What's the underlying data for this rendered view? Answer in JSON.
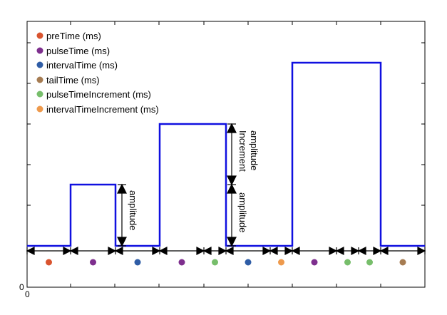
{
  "legend": [
    {
      "label": "preTime (ms)",
      "color": "#D9542F"
    },
    {
      "label": "pulseTime (ms)",
      "color": "#7E2F8E"
    },
    {
      "label": "intervalTime (ms)",
      "color": "#2F5DA6"
    },
    {
      "label": "tailTime (ms)",
      "color": "#A67C52"
    },
    {
      "label": "pulseTimeIncrement (ms)",
      "color": "#77BE6B"
    },
    {
      "label": "intervalTimeIncrement (ms)",
      "color": "#EE9A4D"
    }
  ],
  "axis": {
    "x_origin_label": "0",
    "y_origin_label": "0"
  },
  "annotations": {
    "amplitude": "amplitude",
    "amplitude_increment_line1": "amplitude",
    "amplitude_increment_line2": "Increment"
  },
  "waveform_color": "#1010E0",
  "segment_dot_colors": [
    "#D9542F",
    "#7E2F8E",
    "#2F5DA6",
    "#7E2F8E",
    "#77BE6B",
    "#2F5DA6",
    "#EE9A4D",
    "#7E2F8E",
    "#77BE6B",
    "#77BE6B",
    "#A67C52"
  ]
}
